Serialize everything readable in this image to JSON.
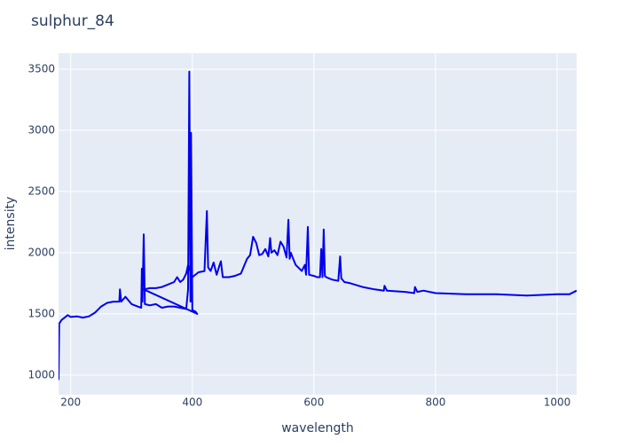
{
  "chart_data": {
    "type": "line",
    "title": "sulphur_84",
    "x_label": "wavelength",
    "y_label": "intensity",
    "xlim": [
      180,
      1032
    ],
    "ylim": [
      840,
      3630
    ],
    "xticks": [
      200,
      400,
      600,
      800,
      1000
    ],
    "yticks": [
      1000,
      1500,
      2000,
      2500,
      3000,
      3500
    ],
    "grid": true,
    "x": [
      180,
      181,
      185,
      190,
      195,
      200,
      210,
      220,
      230,
      240,
      250,
      260,
      270,
      280,
      281,
      283,
      290,
      300,
      310,
      316,
      317,
      318,
      320,
      322,
      330,
      340,
      350,
      360,
      370,
      380,
      390,
      393,
      395,
      397,
      398,
      400,
      405,
      408,
      320,
      330,
      340,
      350,
      360,
      370,
      375,
      380,
      385,
      390,
      393,
      400,
      410,
      420,
      424,
      426,
      430,
      435,
      440,
      445,
      447,
      450,
      460,
      470,
      480,
      490,
      495,
      500,
      505,
      510,
      515,
      520,
      525,
      528,
      530,
      535,
      540,
      545,
      550,
      555,
      558,
      560,
      562,
      565,
      570,
      580,
      585,
      587,
      590,
      592,
      600,
      605,
      610,
      612,
      614,
      616,
      618,
      620,
      630,
      640,
      643,
      645,
      650,
      660,
      680,
      700,
      715,
      716,
      720,
      750,
      765,
      766,
      770,
      780,
      800,
      850,
      900,
      950,
      1000,
      1020,
      1032
    ],
    "series": [
      {
        "name": "sulphur_84",
        "color": "#0000ee",
        "values": [
          960,
          1420,
          1450,
          1470,
          1490,
          1475,
          1480,
          1470,
          1480,
          1510,
          1560,
          1590,
          1600,
          1600,
          1700,
          1600,
          1640,
          1580,
          1560,
          1550,
          1870,
          1600,
          2150,
          1580,
          1570,
          1580,
          1550,
          1560,
          1560,
          1550,
          1540,
          1700,
          3480,
          1600,
          2980,
          1530,
          1520,
          1500,
          1700,
          1710,
          1710,
          1720,
          1740,
          1760,
          1800,
          1760,
          1780,
          1830,
          1900,
          1800,
          1840,
          1850,
          2340,
          1880,
          1850,
          1920,
          1820,
          1900,
          1930,
          1800,
          1800,
          1810,
          1830,
          1950,
          1980,
          2130,
          2080,
          1980,
          1990,
          2030,
          1970,
          2120,
          2000,
          2020,
          1980,
          2090,
          2050,
          1960,
          2270,
          1950,
          2000,
          1960,
          1900,
          1850,
          1900,
          1820,
          2210,
          1820,
          1810,
          1800,
          1800,
          2030,
          1800,
          2190,
          1810,
          1800,
          1780,
          1770,
          1970,
          1790,
          1760,
          1750,
          1720,
          1700,
          1690,
          1730,
          1690,
          1680,
          1670,
          1720,
          1680,
          1690,
          1670,
          1660,
          1660,
          1650,
          1660,
          1660,
          1690
        ]
      }
    ]
  }
}
